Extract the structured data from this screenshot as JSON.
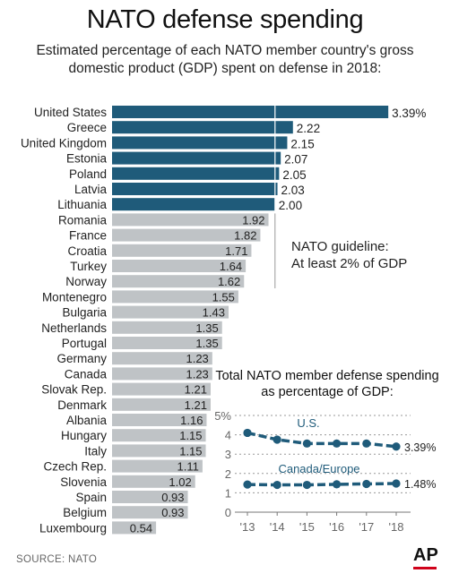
{
  "header": {
    "title": "NATO defense spending",
    "subtitle": "Estimated percentage of each NATO member country's gross domestic product (GDP) spent on defense in 2018:"
  },
  "guideline": {
    "label_line1": "NATO guideline:",
    "label_line2": "At least 2% of GDP",
    "value": 2
  },
  "source": "SOURCE: NATO",
  "logo": "AP",
  "colors": {
    "above_guideline": "#1f5b7a",
    "below_guideline": "#bfc3c6",
    "line": "#1f5b7a",
    "axis": "#777777"
  },
  "chart_data": [
    {
      "type": "bar",
      "orientation": "horizontal",
      "categories": [
        "United States",
        "Greece",
        "United Kingdom",
        "Estonia",
        "Poland",
        "Latvia",
        "Lithuania",
        "Romania",
        "France",
        "Croatia",
        "Turkey",
        "Norway",
        "Montenegro",
        "Bulgaria",
        "Netherlands",
        "Portugal",
        "Germany",
        "Canada",
        "Slovak Rep.",
        "Denmark",
        "Albania",
        "Hungary",
        "Italy",
        "Czech Rep.",
        "Slovenia",
        "Spain",
        "Belgium",
        "Luxembourg"
      ],
      "values": [
        3.39,
        2.22,
        2.15,
        2.07,
        2.05,
        2.03,
        2.0,
        1.92,
        1.82,
        1.71,
        1.64,
        1.62,
        1.55,
        1.43,
        1.35,
        1.35,
        1.23,
        1.23,
        1.21,
        1.21,
        1.16,
        1.15,
        1.15,
        1.11,
        1.02,
        0.93,
        0.93,
        0.54
      ],
      "value_labels": [
        "3.39%",
        "2.22",
        "2.15",
        "2.07",
        "2.05",
        "2.03",
        "2.00",
        "1.92",
        "1.82",
        "1.71",
        "1.64",
        "1.62",
        "1.55",
        "1.43",
        "1.35",
        "1.35",
        "1.23",
        "1.23",
        "1.21",
        "1.21",
        "1.16",
        "1.15",
        "1.15",
        "1.11",
        "1.02",
        "0.93",
        "0.93",
        "0.54"
      ],
      "title": "Estimated percentage of each NATO member country's gross domestic product (GDP) spent on defense in 2018:"
    },
    {
      "type": "line",
      "title": "Total NATO member defense spending as percentage of GDP:",
      "title_line1": "Total NATO member defense spending",
      "title_line2": "as percentage of GDP:",
      "x": [
        "'13",
        "'14",
        "'15",
        "'16",
        "'17",
        "'18"
      ],
      "series": [
        {
          "name": "U.S.",
          "values": [
            4.1,
            3.75,
            3.55,
            3.55,
            3.55,
            3.39
          ],
          "end_label": "3.39%"
        },
        {
          "name": "Canada/Europe",
          "values": [
            1.43,
            1.41,
            1.41,
            1.44,
            1.46,
            1.48
          ],
          "end_label": "1.48%"
        }
      ],
      "ylim": [
        0,
        5
      ],
      "yticks": [
        "0",
        "1",
        "2",
        "3",
        "4",
        "5%"
      ],
      "grid": true
    }
  ]
}
